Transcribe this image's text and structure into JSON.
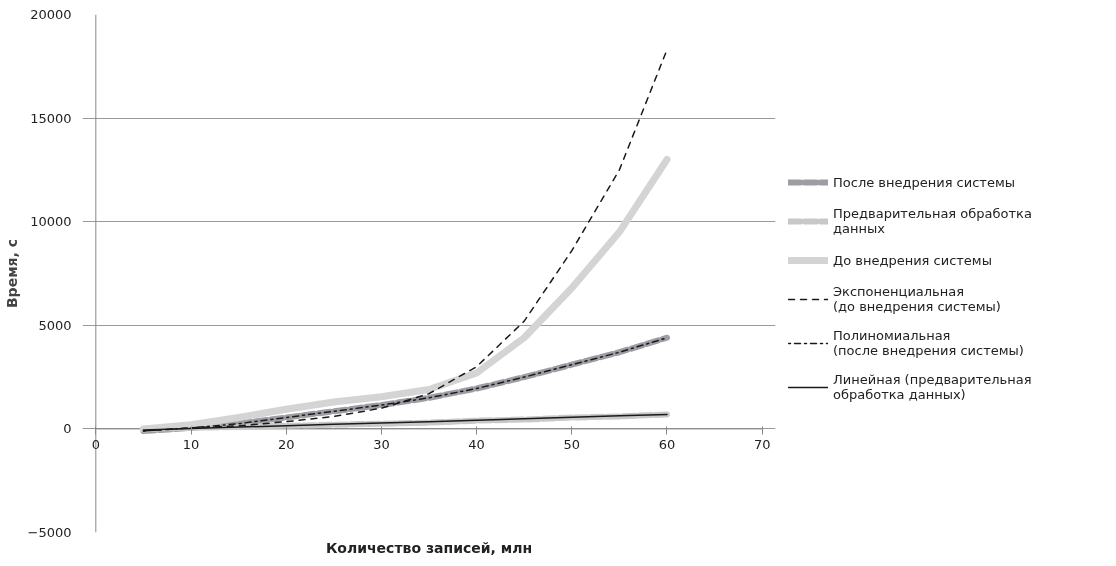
{
  "chart_data": {
    "type": "line",
    "xlabel": "Количество записей, млн",
    "ylabel": "Время, с",
    "xlim": [
      0,
      70
    ],
    "xticks": [
      0,
      10,
      20,
      30,
      40,
      50,
      60,
      70
    ],
    "ylim": [
      -5000,
      20000
    ],
    "yticks": [
      -5000,
      0,
      5000,
      10000,
      15000,
      20000
    ],
    "grid": "y",
    "legend": "right",
    "marker": "none",
    "x": [
      5,
      10,
      15,
      20,
      25,
      30,
      35,
      40,
      45,
      50,
      55,
      60
    ],
    "series": [
      {
        "name": "После внедрения системы",
        "color": "#9d9da3",
        "line_style": "dashed",
        "values": [
          -100,
          50,
          250,
          550,
          850,
          1150,
          1500,
          1950,
          2500,
          3100,
          3700,
          4400
        ]
      },
      {
        "name": "Предварительная обработка\nданных",
        "color": "#c8c8c8",
        "line_style": "dashed",
        "values": [
          0,
          50,
          100,
          150,
          200,
          250,
          300,
          400,
          450,
          550,
          600,
          700
        ]
      },
      {
        "name": "До внедрения системы",
        "color": "#d4d4d4",
        "line_style": "solid",
        "values": [
          0,
          200,
          550,
          950,
          1300,
          1550,
          1900,
          2700,
          4400,
          6800,
          9500,
          13000
        ]
      },
      {
        "name": "Экспоненциальная\n(до внедрения системы)",
        "color": "#1a1a1a",
        "line_style": "dashed",
        "values": [
          -100,
          50,
          150,
          350,
          600,
          1000,
          1700,
          3000,
          5200,
          8600,
          12500,
          18300
        ]
      },
      {
        "name": "Полиномиальная\n(после внедрения системы)",
        "color": "#1a1a1a",
        "line_style": "dotdash",
        "values": [
          -100,
          50,
          250,
          550,
          850,
          1150,
          1500,
          1950,
          2500,
          3100,
          3700,
          4400
        ]
      },
      {
        "name": "Линейная (предварительная\nобработка данных)",
        "color": "#1a1a1a",
        "line_style": "solid",
        "values": [
          -50,
          20,
          90,
          150,
          220,
          290,
          350,
          420,
          490,
          560,
          630,
          700
        ]
      }
    ]
  }
}
